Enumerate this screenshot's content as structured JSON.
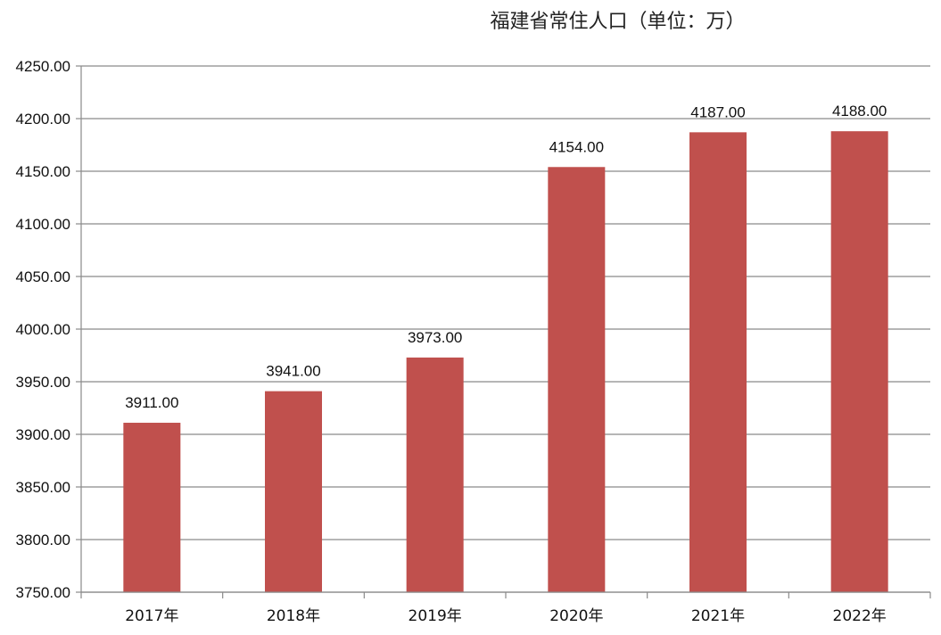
{
  "chart_data": {
    "type": "bar",
    "title": "福建省常住人口（单位：万）",
    "categories": [
      "2017年",
      "2018年",
      "2019年",
      "2020年",
      "2021年",
      "2022年"
    ],
    "values": [
      3911.0,
      3941.0,
      3973.0,
      4154.0,
      4187.0,
      4188.0
    ],
    "data_labels": [
      "3911.00",
      "3941.00",
      "3973.00",
      "4154.00",
      "4187.00",
      "4188.00"
    ],
    "ylim": [
      3750,
      4250
    ],
    "yticks": [
      "3750.00",
      "3800.00",
      "3850.00",
      "3900.00",
      "3950.00",
      "4000.00",
      "4050.00",
      "4100.00",
      "4150.00",
      "4200.00",
      "4250.00"
    ],
    "xlabel": "",
    "ylabel": "",
    "grid": true,
    "legend": "none",
    "bar_color": "#c0504d"
  }
}
